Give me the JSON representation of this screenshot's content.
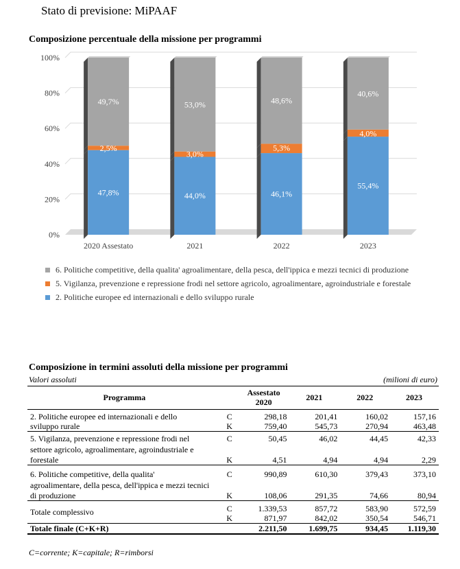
{
  "page_title": "Stato di previsione: MiPAAF",
  "chart_data": {
    "type": "bar",
    "stacked": true,
    "title": "Composizione percentuale della missione per programmi",
    "categories": [
      "2020 Assestato",
      "2021",
      "2022",
      "2023"
    ],
    "y_ticks": [
      "0%",
      "20%",
      "40%",
      "60%",
      "80%",
      "100%"
    ],
    "ylim": [
      0,
      100
    ],
    "series": [
      {
        "name": "2. Politiche europee ed internazionali e dello sviluppo rurale",
        "color": "#5b9bd5",
        "values": [
          47.8,
          44.0,
          46.1,
          55.4
        ],
        "labels": [
          "47,8%",
          "44,0%",
          "46,1%",
          "55,4%"
        ]
      },
      {
        "name": "5. Vigilanza, prevenzione e repressione frodi nel settore agricolo, agroalimentare, agroindustriale e forestale",
        "color": "#ed7d31",
        "values": [
          2.5,
          3.0,
          5.3,
          4.0
        ],
        "labels": [
          "2,5%",
          "3,0%",
          "5,3%",
          "4,0%"
        ]
      },
      {
        "name": "6. Politiche competitive, della qualita' agroalimentare, della pesca, dell'ippica e mezzi tecnici di produzione",
        "color": "#a5a5a5",
        "values": [
          49.7,
          53.0,
          48.6,
          40.6
        ],
        "labels": [
          "49,7%",
          "53,0%",
          "48,6%",
          "40,6%"
        ]
      }
    ],
    "legend_position": "bottom"
  },
  "table": {
    "title": "Composizione in termini assoluti della missione per programmi",
    "left_note": "Valori assoluti",
    "right_note": "(milioni di euro)",
    "headers": {
      "programma": "Programma",
      "c2020": "Assestato 2020",
      "c2021": "2021",
      "c2022": "2022",
      "c2023": "2023"
    },
    "rows": [
      {
        "prog_line1": "2. Politiche europee ed internazionali e dello",
        "prog_line2": "sviluppo rurale",
        "C": [
          "298,18",
          "201,41",
          "160,02",
          "157,16"
        ],
        "K": [
          "759,40",
          "545,73",
          "270,94",
          "463,48"
        ]
      },
      {
        "prog_line1": "5. Vigilanza, prevenzione e repressione frodi nel",
        "prog_line2": "settore agricolo, agroalimentare, agroindustriale e",
        "prog_line3": "forestale",
        "C": [
          "50,45",
          "46,02",
          "44,45",
          "42,33"
        ],
        "K": [
          "4,51",
          "4,94",
          "4,94",
          "2,29"
        ]
      },
      {
        "prog_line1": "6. Politiche competitive, della qualita'",
        "prog_line2": "agroalimentare, della pesca, dell'ippica e mezzi tecnici",
        "prog_line3": "di produzione",
        "C": [
          "990,89",
          "610,30",
          "379,43",
          "373,10"
        ],
        "K": [
          "108,06",
          "291,35",
          "74,66",
          "80,94"
        ]
      }
    ],
    "totale_complessivo": {
      "label": "Totale complessivo",
      "C": [
        "1.339,53",
        "857,72",
        "583,90",
        "572,59"
      ],
      "K": [
        "871,97",
        "842,02",
        "350,54",
        "546,71"
      ]
    },
    "totale_finale": {
      "label": "Totale finale (C+K+R)",
      "values": [
        "2.211,50",
        "1.699,75",
        "934,45",
        "1.119,30"
      ]
    },
    "code_c": "C",
    "code_k": "K"
  },
  "footnote": "C=corrente; K=capitale; R=rimborsi"
}
